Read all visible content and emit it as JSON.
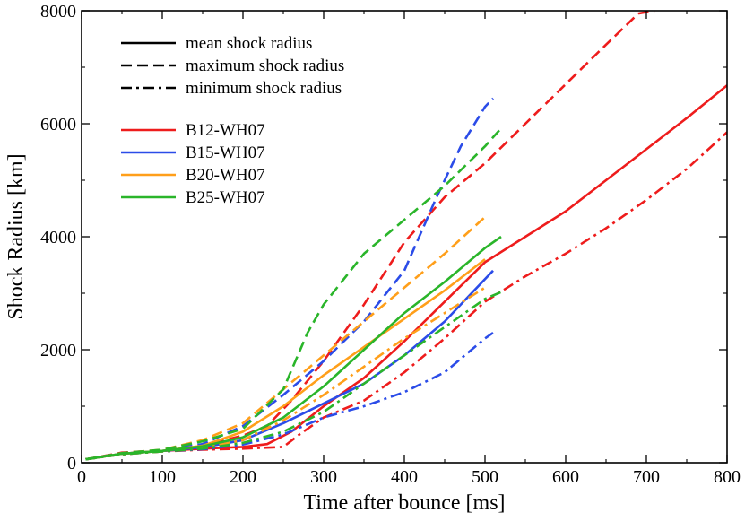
{
  "chart_data": {
    "type": "line",
    "title": "",
    "xlabel": "Time after bounce [ms]",
    "ylabel": "Shock Radius [km]",
    "xlim": [
      0,
      800
    ],
    "ylim": [
      0,
      8000
    ],
    "xticks": [
      0,
      100,
      200,
      300,
      400,
      500,
      600,
      700,
      800
    ],
    "yticks": [
      0,
      2000,
      4000,
      6000,
      8000
    ],
    "grid": false,
    "legend_styles": [
      {
        "label": "mean shock radius",
        "dash": "solid"
      },
      {
        "label": "maximum shock radius",
        "dash": "dashed"
      },
      {
        "label": "minimum shock radius",
        "dash": "dashdot"
      }
    ],
    "legend_models": [
      {
        "label": "B12-WH07",
        "color": "#ee1c1c"
      },
      {
        "label": "B15-WH07",
        "color": "#2b4ce8"
      },
      {
        "label": "B20-WH07",
        "color": "#ff9f1a"
      },
      {
        "label": "B25-WH07",
        "color": "#2ab52a"
      }
    ],
    "series": [
      {
        "name": "B12-WH07 mean",
        "color": "#ee1c1c",
        "dash": "solid",
        "x": [
          5,
          50,
          100,
          150,
          200,
          230,
          260,
          300,
          350,
          400,
          450,
          500,
          550,
          600,
          650,
          700,
          750,
          800
        ],
        "y": [
          60,
          160,
          210,
          250,
          280,
          330,
          550,
          1000,
          1500,
          2150,
          2850,
          3550,
          4000,
          4450,
          5000,
          5550,
          6100,
          6680
        ]
      },
      {
        "name": "B12-WH07 max",
        "color": "#ee1c1c",
        "dash": "dashed",
        "x": [
          5,
          50,
          100,
          150,
          200,
          230,
          260,
          300,
          350,
          400,
          450,
          500,
          550,
          600,
          650,
          690,
          710
        ],
        "y": [
          60,
          180,
          220,
          310,
          480,
          650,
          1100,
          1800,
          2800,
          3900,
          4700,
          5300,
          6000,
          6700,
          7400,
          7950,
          8000
        ]
      },
      {
        "name": "B12-WH07 min",
        "color": "#ee1c1c",
        "dash": "dashdot",
        "x": [
          5,
          50,
          100,
          150,
          200,
          250,
          270,
          300,
          350,
          400,
          450,
          500,
          550,
          600,
          650,
          700,
          750,
          800
        ],
        "y": [
          60,
          150,
          200,
          230,
          250,
          280,
          500,
          800,
          1100,
          1600,
          2200,
          2850,
          3300,
          3700,
          4150,
          4650,
          5200,
          5850
        ]
      },
      {
        "name": "B15-WH07 mean",
        "color": "#2b4ce8",
        "dash": "solid",
        "x": [
          5,
          50,
          100,
          150,
          200,
          250,
          300,
          350,
          400,
          450,
          480,
          510
        ],
        "y": [
          60,
          160,
          210,
          270,
          400,
          700,
          1050,
          1400,
          1900,
          2500,
          2950,
          3400
        ]
      },
      {
        "name": "B15-WH07 max",
        "color": "#2b4ce8",
        "dash": "dashed",
        "x": [
          5,
          50,
          100,
          150,
          200,
          250,
          300,
          350,
          400,
          440,
          470,
          500,
          510
        ],
        "y": [
          60,
          170,
          220,
          330,
          650,
          1200,
          1800,
          2500,
          3400,
          4700,
          5600,
          6300,
          6450
        ]
      },
      {
        "name": "B15-WH07 min",
        "color": "#2b4ce8",
        "dash": "dashdot",
        "x": [
          5,
          50,
          100,
          150,
          200,
          250,
          300,
          350,
          400,
          450,
          500,
          510
        ],
        "y": [
          60,
          150,
          200,
          240,
          320,
          500,
          800,
          1000,
          1250,
          1600,
          2200,
          2300
        ]
      },
      {
        "name": "B20-WH07 mean",
        "color": "#ff9f1a",
        "dash": "solid",
        "x": [
          5,
          50,
          100,
          150,
          200,
          250,
          300,
          350,
          400,
          450,
          500
        ],
        "y": [
          60,
          160,
          210,
          300,
          550,
          1000,
          1550,
          2050,
          2550,
          3050,
          3600
        ]
      },
      {
        "name": "B20-WH07 max",
        "color": "#ff9f1a",
        "dash": "dashed",
        "x": [
          5,
          50,
          100,
          150,
          200,
          250,
          300,
          350,
          400,
          450,
          500
        ],
        "y": [
          60,
          170,
          230,
          400,
          700,
          1300,
          1900,
          2500,
          3100,
          3700,
          4350
        ]
      },
      {
        "name": "B20-WH07 min",
        "color": "#ff9f1a",
        "dash": "dashdot",
        "x": [
          5,
          50,
          100,
          150,
          200,
          250,
          300,
          350,
          400,
          450,
          500
        ],
        "y": [
          60,
          150,
          200,
          260,
          400,
          750,
          1200,
          1700,
          2200,
          2650,
          3100
        ]
      },
      {
        "name": "B25-WH07 mean",
        "color": "#2ab52a",
        "dash": "solid",
        "x": [
          5,
          50,
          100,
          150,
          200,
          250,
          300,
          350,
          400,
          450,
          500,
          520
        ],
        "y": [
          60,
          160,
          210,
          290,
          450,
          800,
          1350,
          2000,
          2650,
          3200,
          3800,
          4000
        ]
      },
      {
        "name": "B25-WH07 max",
        "color": "#2ab52a",
        "dash": "dashed",
        "x": [
          5,
          50,
          100,
          150,
          200,
          250,
          280,
          300,
          350,
          400,
          450,
          500,
          520
        ],
        "y": [
          60,
          170,
          230,
          380,
          600,
          1300,
          2300,
          2800,
          3700,
          4300,
          4900,
          5600,
          5920
        ]
      },
      {
        "name": "B25-WH07 min",
        "color": "#2ab52a",
        "dash": "dashdot",
        "x": [
          5,
          50,
          100,
          150,
          200,
          250,
          300,
          350,
          400,
          450,
          500,
          520
        ],
        "y": [
          60,
          150,
          200,
          250,
          350,
          550,
          900,
          1400,
          1900,
          2400,
          2900,
          3020
        ]
      }
    ]
  }
}
